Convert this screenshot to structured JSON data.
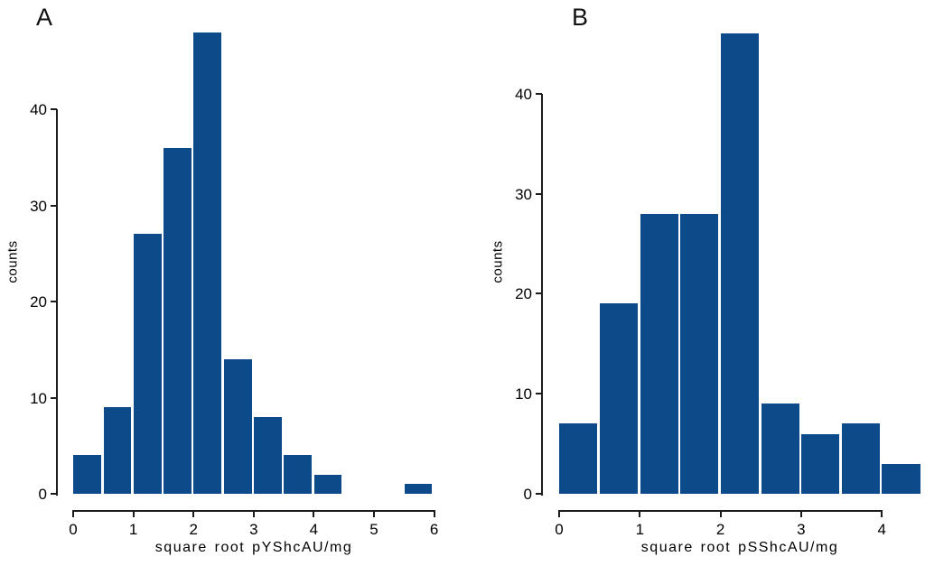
{
  "figure": {
    "background_color": "#ffffff",
    "panel_labels": [
      "A",
      "B"
    ]
  },
  "chart_data": [
    {
      "type": "bar",
      "subtype": "histogram",
      "panel_label": "A",
      "title": "",
      "xlabel": "square root pYShcAU/mg",
      "ylabel": "counts",
      "bin_start": 0,
      "bin_width": 0.5,
      "counts": [
        4,
        9,
        27,
        36,
        48,
        14,
        8,
        4,
        2,
        0,
        0,
        1
      ],
      "bin_edges": [
        0,
        0.5,
        1,
        1.5,
        2,
        2.5,
        3,
        3.5,
        4,
        4.5,
        5,
        5.5,
        6
      ],
      "xticks": [
        0,
        1,
        2,
        3,
        4,
        5,
        6
      ],
      "yticks": [
        0,
        10,
        20,
        30,
        40
      ],
      "xlim": [
        0,
        6
      ],
      "ylim": [
        0,
        48
      ],
      "grid": false,
      "legend": false,
      "bar_color": "#0c4a8a",
      "bar_gap_color": "#ffffff",
      "axis_color": "#1c1c1c"
    },
    {
      "type": "bar",
      "subtype": "histogram",
      "panel_label": "B",
      "title": "",
      "xlabel": "square root pSShcAU/mg",
      "ylabel": "counts",
      "bin_start": 0,
      "bin_width": 0.5,
      "counts": [
        7,
        19,
        28,
        28,
        46,
        9,
        6,
        7,
        3
      ],
      "bin_edges": [
        0,
        0.5,
        1,
        1.5,
        2,
        2.5,
        3,
        3.5,
        4,
        4.5
      ],
      "xticks": [
        0,
        1,
        2,
        3,
        4
      ],
      "yticks": [
        0,
        10,
        20,
        30,
        40
      ],
      "xlim": [
        0,
        4
      ],
      "ylim": [
        0,
        46
      ],
      "grid": false,
      "legend": false,
      "bar_color": "#0c4a8a",
      "bar_gap_color": "#ffffff",
      "axis_color": "#1c1c1c"
    }
  ]
}
